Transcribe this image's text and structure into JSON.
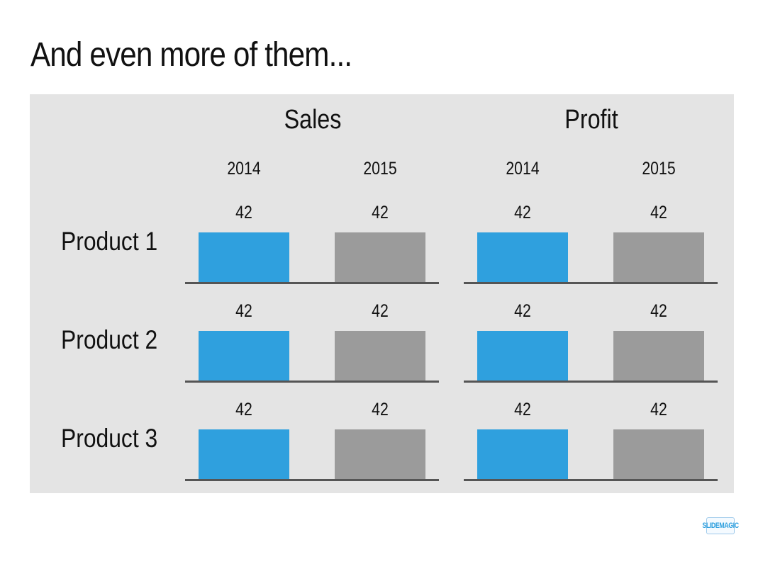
{
  "slide": {
    "title": "And even more of them..."
  },
  "logo": {
    "text": "SLIDEMAGIC"
  },
  "colors": {
    "bar_2014": "#2fa0de",
    "bar_2015": "#9b9b9b",
    "panel_bg": "#e4e4e4",
    "baseline": "#555555"
  },
  "chart_data": {
    "type": "bar",
    "groups": [
      "Sales",
      "Profit"
    ],
    "years": [
      "2014",
      "2015"
    ],
    "rows": [
      "Product 1",
      "Product 2",
      "Product 3"
    ],
    "values": {
      "Sales": {
        "Product 1": [
          42,
          42
        ],
        "Product 2": [
          42,
          42
        ],
        "Product 3": [
          42,
          42
        ]
      },
      "Profit": {
        "Product 1": [
          42,
          42
        ],
        "Product 2": [
          42,
          42
        ],
        "Product 3": [
          42,
          42
        ]
      }
    },
    "ylim": [
      0,
      42
    ],
    "grid": false,
    "legend": "none"
  }
}
